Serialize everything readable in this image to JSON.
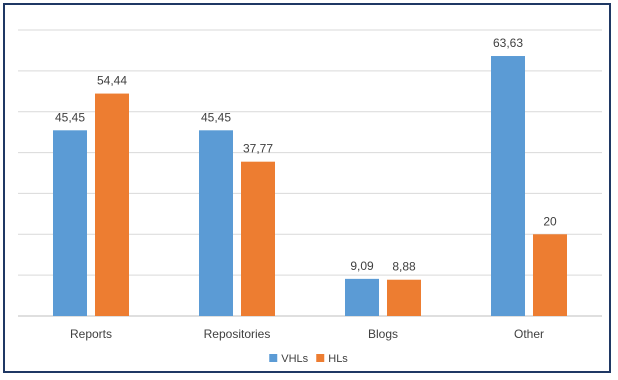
{
  "chart_data": {
    "type": "bar",
    "categories": [
      "Reports",
      "Repositories",
      "Blogs",
      "Other"
    ],
    "series": [
      {
        "name": "VHLs",
        "values": [
          45.45,
          45.45,
          9.09,
          63.63
        ],
        "labels": [
          "45,45",
          "45,45",
          "9,09",
          "63,63"
        ],
        "color": "#5b9bd5"
      },
      {
        "name": "HLs",
        "values": [
          54.44,
          37.77,
          8.88,
          20
        ],
        "labels": [
          "54,44",
          "37,77",
          "8,88",
          "20"
        ],
        "color": "#ed7d31"
      }
    ],
    "ylim": [
      0,
      70
    ],
    "grid": true,
    "legend_position": "bottom"
  }
}
